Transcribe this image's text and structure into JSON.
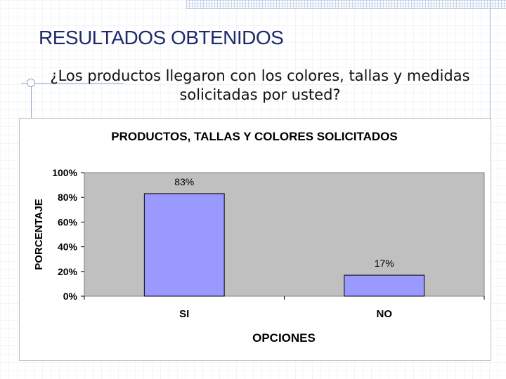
{
  "slide": {
    "title": "RESULTADOS OBTENIDOS",
    "question": "¿Los productos llegaron con los colores, tallas y medidas solicitadas por usted?"
  },
  "colors": {
    "bar_fill": "#9999ff",
    "plot_bg": "#c0c0c0",
    "title_color": "#1f2a6b"
  },
  "chart_data": {
    "type": "bar",
    "title": "PRODUCTOS, TALLAS Y COLORES SOLICITADOS",
    "xlabel": "OPCIONES",
    "ylabel": "PORCENTAJE",
    "categories": [
      "SI",
      "NO"
    ],
    "values": [
      83,
      17
    ],
    "data_labels": [
      "83%",
      "17%"
    ],
    "ylim": [
      0,
      100
    ],
    "yticks": [
      "0%",
      "20%",
      "40%",
      "60%",
      "80%",
      "100%"
    ],
    "grid": false,
    "legend": "none"
  }
}
